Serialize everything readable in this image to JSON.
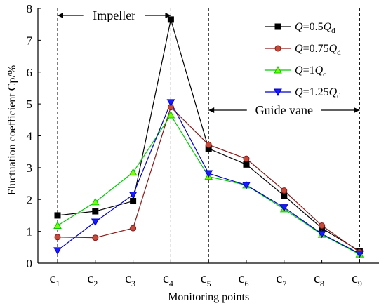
{
  "chart_data": {
    "type": "line",
    "xlabel": "Monitoring points",
    "ylabel": "Fluctuation coefficient Cp/%",
    "ylim": [
      0,
      8
    ],
    "yticks": [
      "0",
      "1",
      "2",
      "3",
      "4",
      "5",
      "6",
      "7",
      "8"
    ],
    "categories": [
      {
        "base": "c",
        "sub": "1"
      },
      {
        "base": "c",
        "sub": "2"
      },
      {
        "base": "c",
        "sub": "3"
      },
      {
        "base": "c",
        "sub": "4"
      },
      {
        "base": "c",
        "sub": "5"
      },
      {
        "base": "c",
        "sub": "6"
      },
      {
        "base": "c",
        "sub": "7"
      },
      {
        "base": "c",
        "sub": "8"
      },
      {
        "base": "c",
        "sub": "9"
      }
    ],
    "series": [
      {
        "name": "Q=0.5Qd",
        "label_main": "Q",
        "label_eq": "=0.5",
        "label_tail": "Q",
        "label_sub": "d",
        "color": "#000000",
        "fill": "#000000",
        "marker": "square",
        "values": [
          1.5,
          1.63,
          1.95,
          7.65,
          3.6,
          3.1,
          2.12,
          1.1,
          0.38
        ]
      },
      {
        "name": "Q=0.75Qd",
        "label_main": "Q",
        "label_eq": "=0.75",
        "label_tail": "Q",
        "label_sub": "d",
        "color": "#8b1a1a",
        "fill": "#c44a3a",
        "marker": "circle",
        "values": [
          0.82,
          0.8,
          1.1,
          4.9,
          3.72,
          3.28,
          2.28,
          1.18,
          0.35
        ]
      },
      {
        "name": "Q=1Qd",
        "label_main": "Q",
        "label_eq": "=1",
        "label_tail": "Q",
        "label_sub": "d",
        "color": "#00cc00",
        "fill": "#7cfc00",
        "marker": "triangle-up",
        "values": [
          1.18,
          1.92,
          2.85,
          4.65,
          2.72,
          2.45,
          1.7,
          0.9,
          0.28
        ]
      },
      {
        "name": "Q=1.25Qd",
        "label_main": "Q",
        "label_eq": "=1.25",
        "label_tail": "Q",
        "label_sub": "d",
        "color": "#0000cc",
        "fill": "#1a1aff",
        "marker": "triangle-down",
        "values": [
          0.4,
          1.3,
          2.15,
          5.05,
          2.82,
          2.45,
          1.75,
          0.92,
          0.3
        ]
      }
    ],
    "annotations": [
      {
        "text": "Impeller",
        "from_category": 0,
        "to_category": 3
      },
      {
        "text": "Guide vane",
        "from_category": 4,
        "to_category": 8
      }
    ],
    "vertical_dashed_lines_at_categories": [
      0,
      3,
      4,
      8
    ],
    "legend_position": "top-right",
    "grid": false
  }
}
